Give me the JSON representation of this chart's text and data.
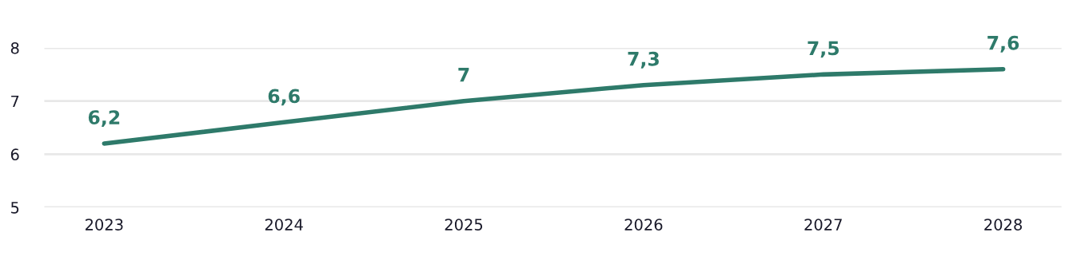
{
  "chart_data": {
    "type": "line",
    "categories": [
      "2023",
      "2024",
      "2025",
      "2026",
      "2027",
      "2028"
    ],
    "series": [
      {
        "color": "#2e7a6a",
        "values": [
          6.2,
          6.6,
          7,
          7.3,
          7.5,
          7.6
        ],
        "value_labels": [
          "6,2",
          "6,6",
          "7",
          "7,3",
          "7,5",
          "7,6"
        ]
      }
    ],
    "ylim": [
      5,
      8
    ],
    "yticks": [
      5,
      6,
      7,
      8
    ],
    "grid": "y",
    "marker": "none",
    "line_style": "solid"
  }
}
